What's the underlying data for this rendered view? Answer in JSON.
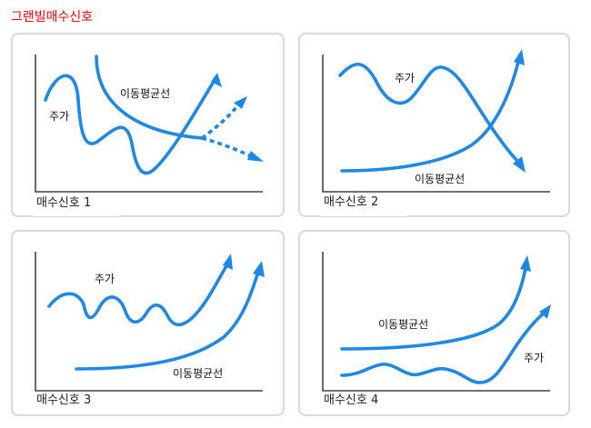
{
  "title": "그랜빌매수신호",
  "panels": [
    {
      "caption": "매수신호 1",
      "price_label": "주가",
      "ma_label": "이동평균선"
    },
    {
      "caption": "매수신호 2",
      "price_label": "주가",
      "ma_label": "이동평균선"
    },
    {
      "caption": "매수신호 3",
      "price_label": "주가",
      "ma_label": "이동평균선"
    },
    {
      "caption": "매수신호 4",
      "price_label": "주가",
      "ma_label": "이동평균선"
    }
  ],
  "colors": {
    "title": "#ff0000",
    "curve": "#1e88e5",
    "axis": "#444444",
    "border": "#d9d9d9"
  }
}
